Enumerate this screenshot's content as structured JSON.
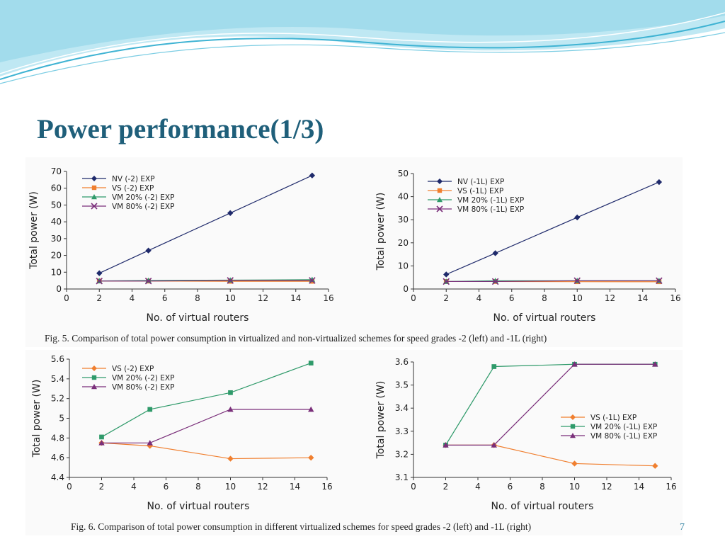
{
  "slide": {
    "title": "Power performance(1/3)",
    "fig5_caption": "Fig. 5.    Comparison of total power consumption in virtualized and non-virtualized schemes for speed grades -2 (left) and -1L (right)",
    "fig6_caption": "Fig. 6.    Comparison of total power consumption in different virtualized schemes for speed grades -2 (left) and -1L (right)",
    "page_number": "7"
  },
  "colors": {
    "title": "#1f5f7a",
    "wave_light": "#bfe8f3",
    "wave_dark": "#3fb3d3",
    "NV": "#1f2a6b",
    "VS": "#f07f2f",
    "VM20": "#2f9a6a",
    "VM80": "#7a2f7a"
  },
  "chart_data": [
    {
      "id": "fig5-left",
      "type": "line",
      "xlabel": "No. of virtual routers",
      "ylabel": "Total power (W)",
      "xlim": [
        0,
        16
      ],
      "ylim": [
        0,
        70
      ],
      "xticks": [
        0,
        2,
        4,
        6,
        8,
        10,
        12,
        14,
        16
      ],
      "yticks": [
        0,
        10,
        20,
        30,
        40,
        50,
        60,
        70
      ],
      "ytick_labels": [
        "0",
        "10",
        "20",
        "30",
        "40",
        "50",
        "60",
        "70"
      ],
      "grid": false,
      "legend_position": "top-left",
      "x": [
        2,
        5,
        10,
        15
      ],
      "series": [
        {
          "name": "NV (-2) EXP",
          "marker": "diamond",
          "color": "#1f2a6b",
          "values": [
            9.4,
            22.9,
            45.2,
            67.6
          ]
        },
        {
          "name": "VS (-2) EXP",
          "marker": "square",
          "color": "#f07f2f",
          "values": [
            4.75,
            4.72,
            4.59,
            4.6
          ]
        },
        {
          "name": "VM 20% (-2) EXP",
          "marker": "triangle",
          "color": "#2f9a6a",
          "values": [
            4.81,
            5.09,
            5.26,
            5.56
          ]
        },
        {
          "name": "VM 80% (-2) EXP",
          "marker": "x",
          "color": "#7a2f7a",
          "values": [
            4.75,
            4.75,
            5.09,
            5.09
          ]
        }
      ]
    },
    {
      "id": "fig5-right",
      "type": "line",
      "xlabel": "No. of virtual routers",
      "ylabel": "Total power (W)",
      "xlim": [
        0,
        16
      ],
      "ylim": [
        0,
        50
      ],
      "xticks": [
        0,
        2,
        4,
        6,
        8,
        10,
        12,
        14,
        16
      ],
      "yticks": [
        0,
        10,
        20,
        30,
        40,
        50
      ],
      "ytick_labels": [
        "0",
        "10",
        "20",
        "30",
        "40",
        "50"
      ],
      "grid": false,
      "legend_position": "top-left",
      "x": [
        2,
        5,
        10,
        15
      ],
      "series": [
        {
          "name": "NV (-1L) EXP",
          "marker": "diamond",
          "color": "#1f2a6b",
          "values": [
            6.3,
            15.5,
            31.0,
            46.3
          ]
        },
        {
          "name": "VS (-1L) EXP",
          "marker": "square",
          "color": "#f07f2f",
          "values": [
            3.24,
            3.24,
            3.16,
            3.15
          ]
        },
        {
          "name": "VM 20% (-1L) EXP",
          "marker": "triangle",
          "color": "#2f9a6a",
          "values": [
            3.24,
            3.58,
            3.59,
            3.59
          ]
        },
        {
          "name": "VM 80% (-1L) EXP",
          "marker": "x",
          "color": "#7a2f7a",
          "values": [
            3.24,
            3.24,
            3.59,
            3.59
          ]
        }
      ]
    },
    {
      "id": "fig6-left",
      "type": "line",
      "xlabel": "No. of virtual routers",
      "ylabel": "Total power (W)",
      "xlim": [
        0,
        16
      ],
      "ylim": [
        4.4,
        5.6
      ],
      "xticks": [
        0,
        2,
        4,
        6,
        8,
        10,
        12,
        14,
        16
      ],
      "yticks": [
        4.4,
        4.6,
        4.8,
        5.0,
        5.2,
        5.4,
        5.6
      ],
      "ytick_labels": [
        "4.4",
        "4.6",
        "4.8",
        "5",
        "5.2",
        "5.4",
        "5.6"
      ],
      "grid": false,
      "legend_position": "top-left",
      "x": [
        2,
        5,
        10,
        15
      ],
      "series": [
        {
          "name": "VS (-2) EXP",
          "marker": "diamond",
          "color": "#f07f2f",
          "values": [
            4.75,
            4.72,
            4.59,
            4.6
          ]
        },
        {
          "name": "VM 20% (-2) EXP",
          "marker": "square",
          "color": "#2f9a6a",
          "values": [
            4.81,
            5.09,
            5.26,
            5.56
          ]
        },
        {
          "name": "VM 80% (-2) EXP",
          "marker": "triangle",
          "color": "#7a2f7a",
          "values": [
            4.75,
            4.75,
            5.09,
            5.09
          ]
        }
      ]
    },
    {
      "id": "fig6-right",
      "type": "line",
      "xlabel": "No. of virtual routers",
      "ylabel": "Total power (W)",
      "xlim": [
        0,
        16
      ],
      "ylim": [
        3.1,
        3.6
      ],
      "xticks": [
        0,
        2,
        4,
        6,
        8,
        10,
        12,
        14,
        16
      ],
      "yticks": [
        3.1,
        3.2,
        3.3,
        3.4,
        3.5,
        3.6
      ],
      "ytick_labels": [
        "3.1",
        "3.2",
        "3.3",
        "3.4",
        "3.5",
        "3.6"
      ],
      "grid": false,
      "legend_position": "right",
      "x": [
        2,
        5,
        10,
        15
      ],
      "series": [
        {
          "name": "VS (-1L) EXP",
          "marker": "diamond",
          "color": "#f07f2f",
          "values": [
            3.24,
            3.24,
            3.16,
            3.15
          ]
        },
        {
          "name": "VM 20% (-1L) EXP",
          "marker": "square",
          "color": "#2f9a6a",
          "values": [
            3.24,
            3.58,
            3.59,
            3.59
          ]
        },
        {
          "name": "VM 80% (-1L) EXP",
          "marker": "triangle",
          "color": "#7a2f7a",
          "values": [
            3.24,
            3.24,
            3.59,
            3.59
          ]
        }
      ]
    }
  ]
}
